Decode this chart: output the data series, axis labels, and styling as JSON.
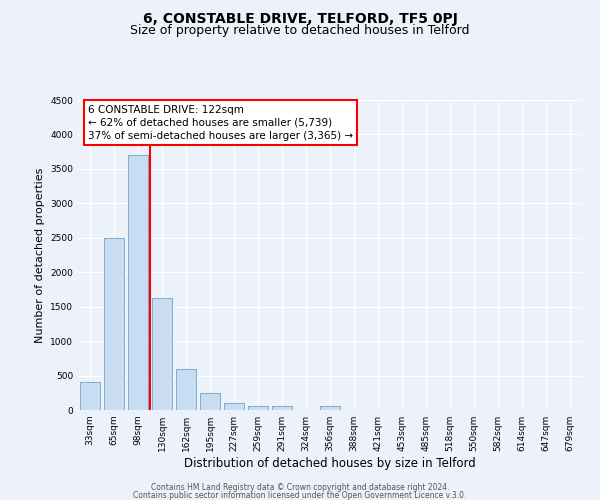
{
  "title": "6, CONSTABLE DRIVE, TELFORD, TF5 0PJ",
  "subtitle": "Size of property relative to detached houses in Telford",
  "xlabel": "Distribution of detached houses by size in Telford",
  "ylabel": "Number of detached properties",
  "footer_line1": "Contains HM Land Registry data © Crown copyright and database right 2024.",
  "footer_line2": "Contains public sector information licensed under the Open Government Licence v.3.0.",
  "bin_labels": [
    "33sqm",
    "65sqm",
    "98sqm",
    "130sqm",
    "162sqm",
    "195sqm",
    "227sqm",
    "259sqm",
    "291sqm",
    "324sqm",
    "356sqm",
    "388sqm",
    "421sqm",
    "453sqm",
    "485sqm",
    "518sqm",
    "550sqm",
    "582sqm",
    "614sqm",
    "647sqm",
    "679sqm"
  ],
  "bar_values": [
    400,
    2500,
    3700,
    1620,
    600,
    250,
    100,
    55,
    55,
    0,
    55,
    0,
    0,
    0,
    0,
    0,
    0,
    0,
    0,
    0,
    0
  ],
  "bar_color": "#c9ddf2",
  "bar_edge_color": "#7badd4",
  "vline_color": "red",
  "vline_x_idx": 3,
  "annotation_title": "6 CONSTABLE DRIVE: 122sqm",
  "annotation_line1": "← 62% of detached houses are smaller (5,739)",
  "annotation_line2": "37% of semi-detached houses are larger (3,365) →",
  "ylim": [
    0,
    4500
  ],
  "yticks": [
    0,
    500,
    1000,
    1500,
    2000,
    2500,
    3000,
    3500,
    4000,
    4500
  ],
  "bg_color": "#edf2fa",
  "grid_color": "#ffffff",
  "title_fontsize": 10,
  "subtitle_fontsize": 9,
  "ylabel_fontsize": 8,
  "xlabel_fontsize": 8.5,
  "tick_fontsize": 6.5,
  "footer_fontsize": 5.5,
  "ann_fontsize": 7.5
}
